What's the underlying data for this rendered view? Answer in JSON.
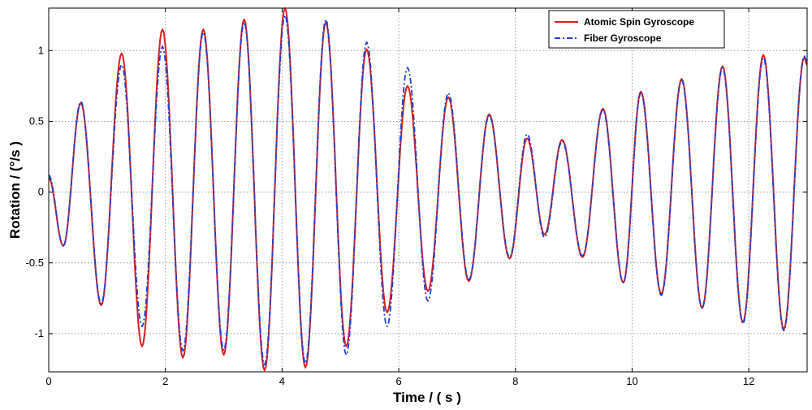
{
  "chart_data": {
    "type": "line",
    "xlabel": "Time  / ( s )",
    "ylabel": "Rotation  / (°/s )",
    "xlim": [
      0,
      13
    ],
    "ylim": [
      -1.27,
      1.3
    ],
    "xticks": [
      0,
      2,
      4,
      6,
      8,
      10,
      12
    ],
    "xtick_labels": [
      "0",
      "2",
      "4",
      "6",
      "8",
      "10",
      "12"
    ],
    "yticks": [
      -1,
      -0.5,
      0,
      0.5,
      1
    ],
    "ytick_labels": [
      "-1",
      "-0.5",
      "0",
      "0.5",
      "1"
    ],
    "grid": true,
    "legend_position": "top-right",
    "series": [
      {
        "name": "Atomic Spin Gyroscope",
        "color": "#d62020",
        "style": "solid",
        "extrema": [
          [
            0.0,
            0.1
          ],
          [
            0.25,
            -0.38
          ],
          [
            0.55,
            0.63
          ],
          [
            0.9,
            -0.8
          ],
          [
            1.25,
            0.98
          ],
          [
            1.6,
            -1.09
          ],
          [
            1.95,
            1.15
          ],
          [
            2.3,
            -1.17
          ],
          [
            2.65,
            1.15
          ],
          [
            3.0,
            -1.15
          ],
          [
            3.35,
            1.22
          ],
          [
            3.7,
            -1.26
          ],
          [
            4.05,
            1.3
          ],
          [
            4.4,
            -1.24
          ],
          [
            4.75,
            1.2
          ],
          [
            5.1,
            -1.09
          ],
          [
            5.45,
            1.01
          ],
          [
            5.8,
            -0.85
          ],
          [
            6.15,
            0.75
          ],
          [
            6.5,
            -0.7
          ],
          [
            6.85,
            0.67
          ],
          [
            7.2,
            -0.63
          ],
          [
            7.55,
            0.55
          ],
          [
            7.9,
            -0.47
          ],
          [
            8.2,
            0.38
          ],
          [
            8.5,
            -0.3
          ],
          [
            8.8,
            0.37
          ],
          [
            9.15,
            -0.46
          ],
          [
            9.5,
            0.59
          ],
          [
            9.85,
            -0.64
          ],
          [
            10.15,
            0.71
          ],
          [
            10.5,
            -0.72
          ],
          [
            10.85,
            0.8
          ],
          [
            11.2,
            -0.82
          ],
          [
            11.55,
            0.89
          ],
          [
            11.9,
            -0.92
          ],
          [
            12.25,
            0.97
          ],
          [
            12.6,
            -0.97
          ],
          [
            12.95,
            0.95
          ],
          [
            13.0,
            0.9
          ]
        ]
      },
      {
        "name": "Fiber Gyroscope",
        "color": "#1f3fd6",
        "style": "dashdot",
        "extrema": [
          [
            0.0,
            0.12
          ],
          [
            0.25,
            -0.38
          ],
          [
            0.55,
            0.64
          ],
          [
            0.9,
            -0.79
          ],
          [
            1.25,
            0.9
          ],
          [
            1.6,
            -0.95
          ],
          [
            1.95,
            1.03
          ],
          [
            2.3,
            -1.12
          ],
          [
            2.65,
            1.13
          ],
          [
            3.0,
            -1.12
          ],
          [
            3.35,
            1.2
          ],
          [
            3.7,
            -1.22
          ],
          [
            4.05,
            1.25
          ],
          [
            4.4,
            -1.21
          ],
          [
            4.75,
            1.22
          ],
          [
            5.1,
            -1.15
          ],
          [
            5.45,
            1.06
          ],
          [
            5.8,
            -0.95
          ],
          [
            6.15,
            0.88
          ],
          [
            6.5,
            -0.77
          ],
          [
            6.85,
            0.7
          ],
          [
            7.2,
            -0.62
          ],
          [
            7.55,
            0.54
          ],
          [
            7.9,
            -0.46
          ],
          [
            8.2,
            0.41
          ],
          [
            8.5,
            -0.32
          ],
          [
            8.8,
            0.36
          ],
          [
            9.15,
            -0.45
          ],
          [
            9.5,
            0.58
          ],
          [
            9.85,
            -0.64
          ],
          [
            10.15,
            0.7
          ],
          [
            10.5,
            -0.73
          ],
          [
            10.85,
            0.79
          ],
          [
            11.2,
            -0.82
          ],
          [
            11.55,
            0.88
          ],
          [
            11.9,
            -0.93
          ],
          [
            12.25,
            0.95
          ],
          [
            12.6,
            -0.98
          ],
          [
            12.95,
            0.96
          ],
          [
            13.0,
            0.92
          ]
        ]
      }
    ]
  }
}
